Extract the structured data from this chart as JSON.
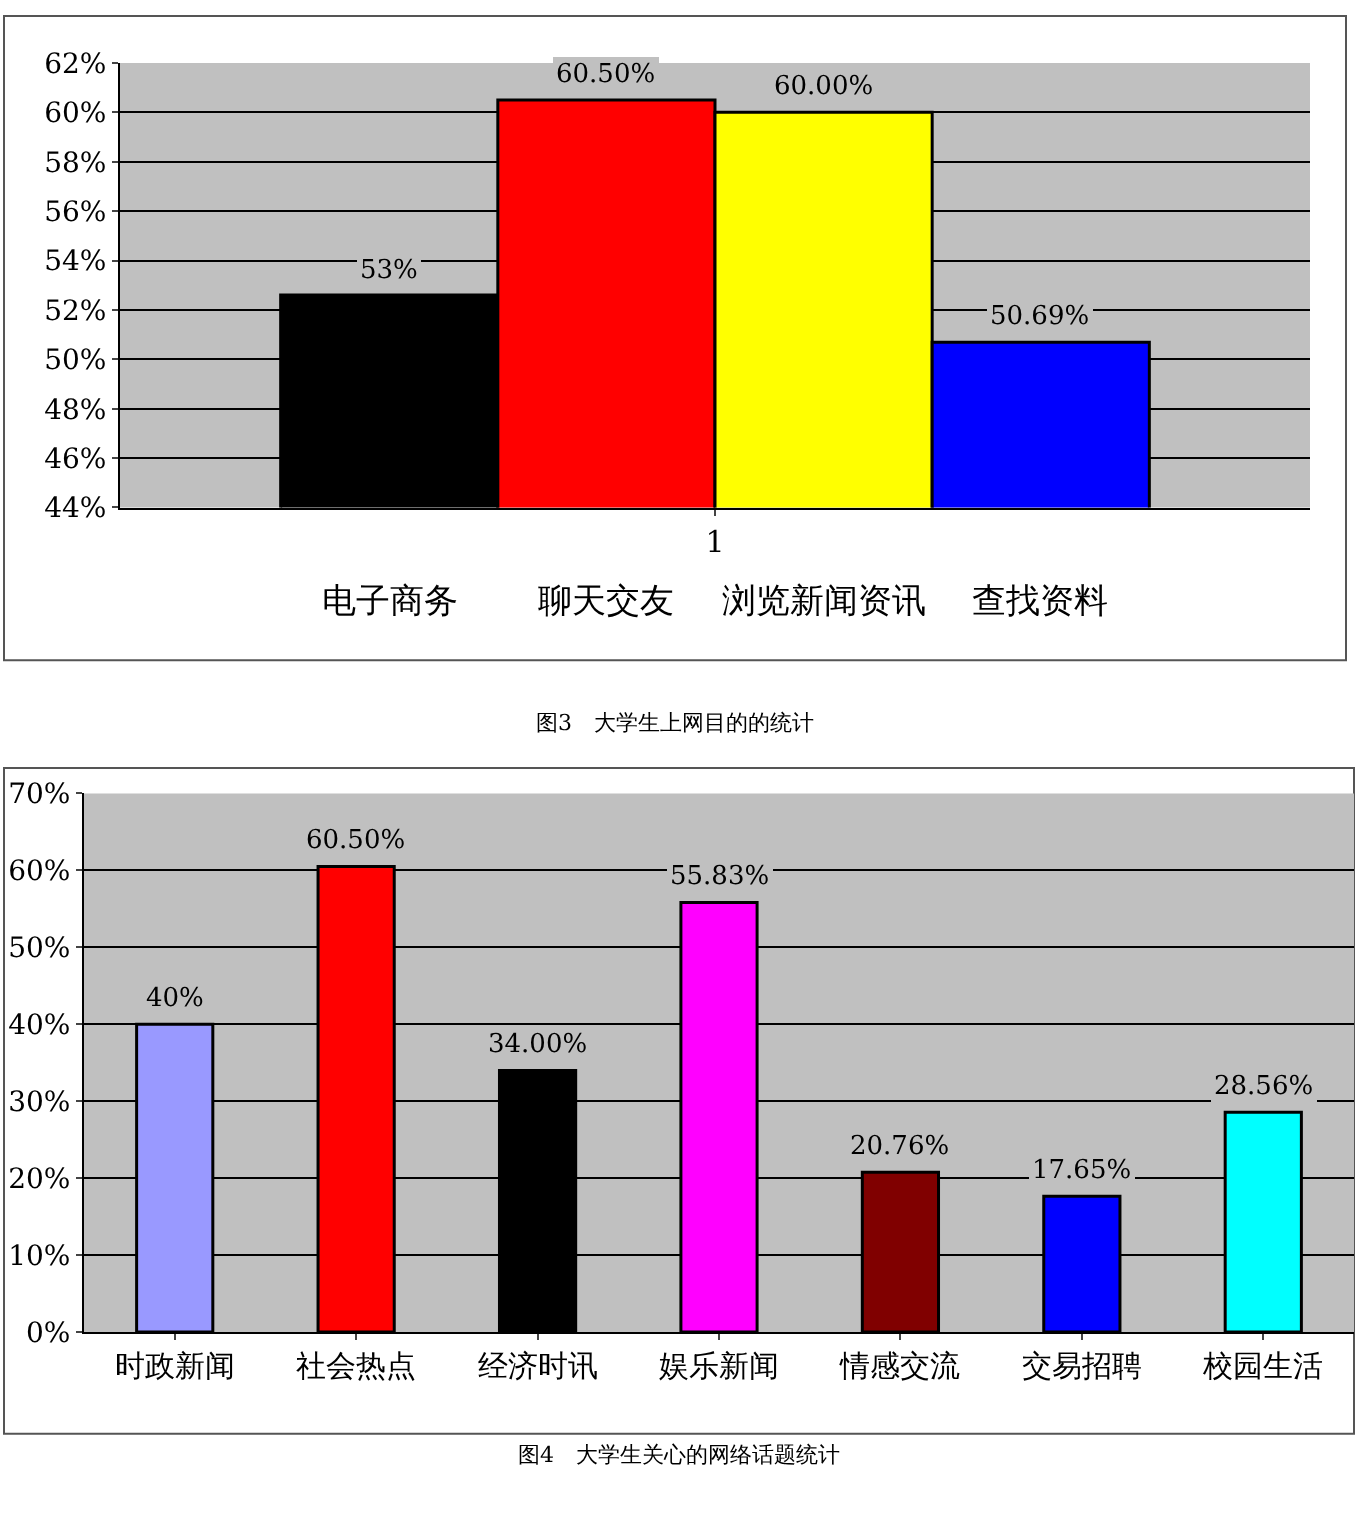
{
  "chart_data": [
    {
      "type": "bar",
      "categories": [
        "1"
      ],
      "series": [
        {
          "name": "电子商务",
          "color": "#000000",
          "values": [
            52.6
          ],
          "value_labels": [
            "53%"
          ]
        },
        {
          "name": "聊天交友",
          "color": "#ff0000",
          "values": [
            60.5
          ],
          "value_labels": [
            "60.50%"
          ]
        },
        {
          "name": "浏览新闻资讯",
          "color": "#ffff00",
          "values": [
            60.0
          ],
          "value_labels": [
            "60.00%"
          ]
        },
        {
          "name": "查找资料",
          "color": "#0000ff",
          "values": [
            50.69
          ],
          "value_labels": [
            "50.69%"
          ]
        }
      ],
      "ylim": [
        44,
        62
      ],
      "yticks": [
        {
          "value": 44,
          "label": "44%"
        },
        {
          "value": 46,
          "label": "46%"
        },
        {
          "value": 48,
          "label": "48%"
        },
        {
          "value": 50,
          "label": "50%"
        },
        {
          "value": 52,
          "label": "52%"
        },
        {
          "value": 54,
          "label": "54%"
        },
        {
          "value": 56,
          "label": "56%"
        },
        {
          "value": 58,
          "label": "58%"
        },
        {
          "value": 60,
          "label": "60%"
        },
        {
          "value": 62,
          "label": "62%"
        }
      ],
      "grid": "y",
      "legend": false,
      "annotations": [
        "图3　大学生上网目的的统计"
      ]
    },
    {
      "type": "bar",
      "categories": [
        "时政新闻",
        "社会热点",
        "经济时讯",
        "娱乐新闻",
        "情感交流",
        "交易招聘",
        "校园生活"
      ],
      "values": [
        40,
        60.5,
        34,
        55.83,
        20.76,
        17.65,
        28.56
      ],
      "value_labels": [
        "40%",
        "60.50%",
        "34.00%",
        "55.83%",
        "20.76%",
        "17.65%",
        "28.56%"
      ],
      "colors": [
        "#9999ff",
        "#ff0000",
        "#000000",
        "#ff00ff",
        "#800000",
        "#0000ff",
        "#00ffff"
      ],
      "ylim": [
        0,
        70
      ],
      "yticks": [
        {
          "value": 0,
          "label": "0%"
        },
        {
          "value": 10,
          "label": "10%"
        },
        {
          "value": 20,
          "label": "20%"
        },
        {
          "value": 30,
          "label": "30%"
        },
        {
          "value": 40,
          "label": "40%"
        },
        {
          "value": 50,
          "label": "50%"
        },
        {
          "value": 60,
          "label": "60%"
        },
        {
          "value": 70,
          "label": "70%"
        }
      ],
      "grid": "y",
      "legend": false,
      "annotations": [
        "图4　大学生关心的网络话题统计"
      ]
    }
  ]
}
